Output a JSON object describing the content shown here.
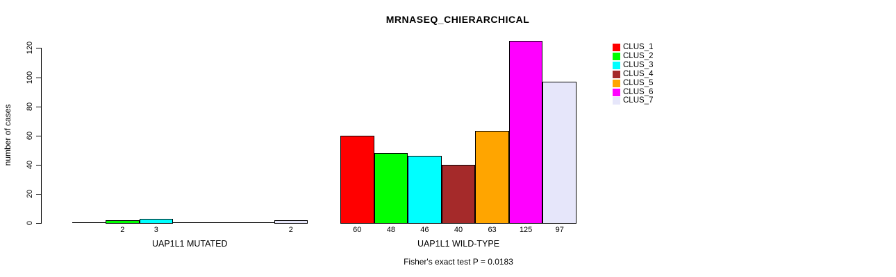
{
  "chart_data": {
    "type": "bar",
    "title": "MRNASEQ_CHIERARCHICAL",
    "ylabel": "number of cases",
    "xlabel": "",
    "ylim": [
      0,
      120
    ],
    "yticks": [
      0,
      20,
      40,
      60,
      80,
      100,
      120
    ],
    "grid": false,
    "categories": [
      "CLUS_1",
      "CLUS_2",
      "CLUS_3",
      "CLUS_4",
      "CLUS_5",
      "CLUS_6",
      "CLUS_7"
    ],
    "series_colors": [
      "#FF0000",
      "#00FF00",
      "#00FFFF",
      "#A52A2A",
      "#FFA500",
      "#FF00FF",
      "#E6E6FA"
    ],
    "groups": [
      {
        "label": "UAP1L1 MUTATED",
        "values": [
          0,
          2,
          3,
          0,
          0,
          0,
          2
        ]
      },
      {
        "label": "UAP1L1 WILD-TYPE",
        "values": [
          60,
          48,
          46,
          40,
          63,
          125,
          97
        ]
      }
    ],
    "legend": {
      "position": "top-right",
      "entries": [
        "CLUS_1",
        "CLUS_2",
        "CLUS_3",
        "CLUS_4",
        "CLUS_5",
        "CLUS_6",
        "CLUS_7"
      ]
    },
    "annotation": "Fisher's exact test P = 0.0183"
  }
}
